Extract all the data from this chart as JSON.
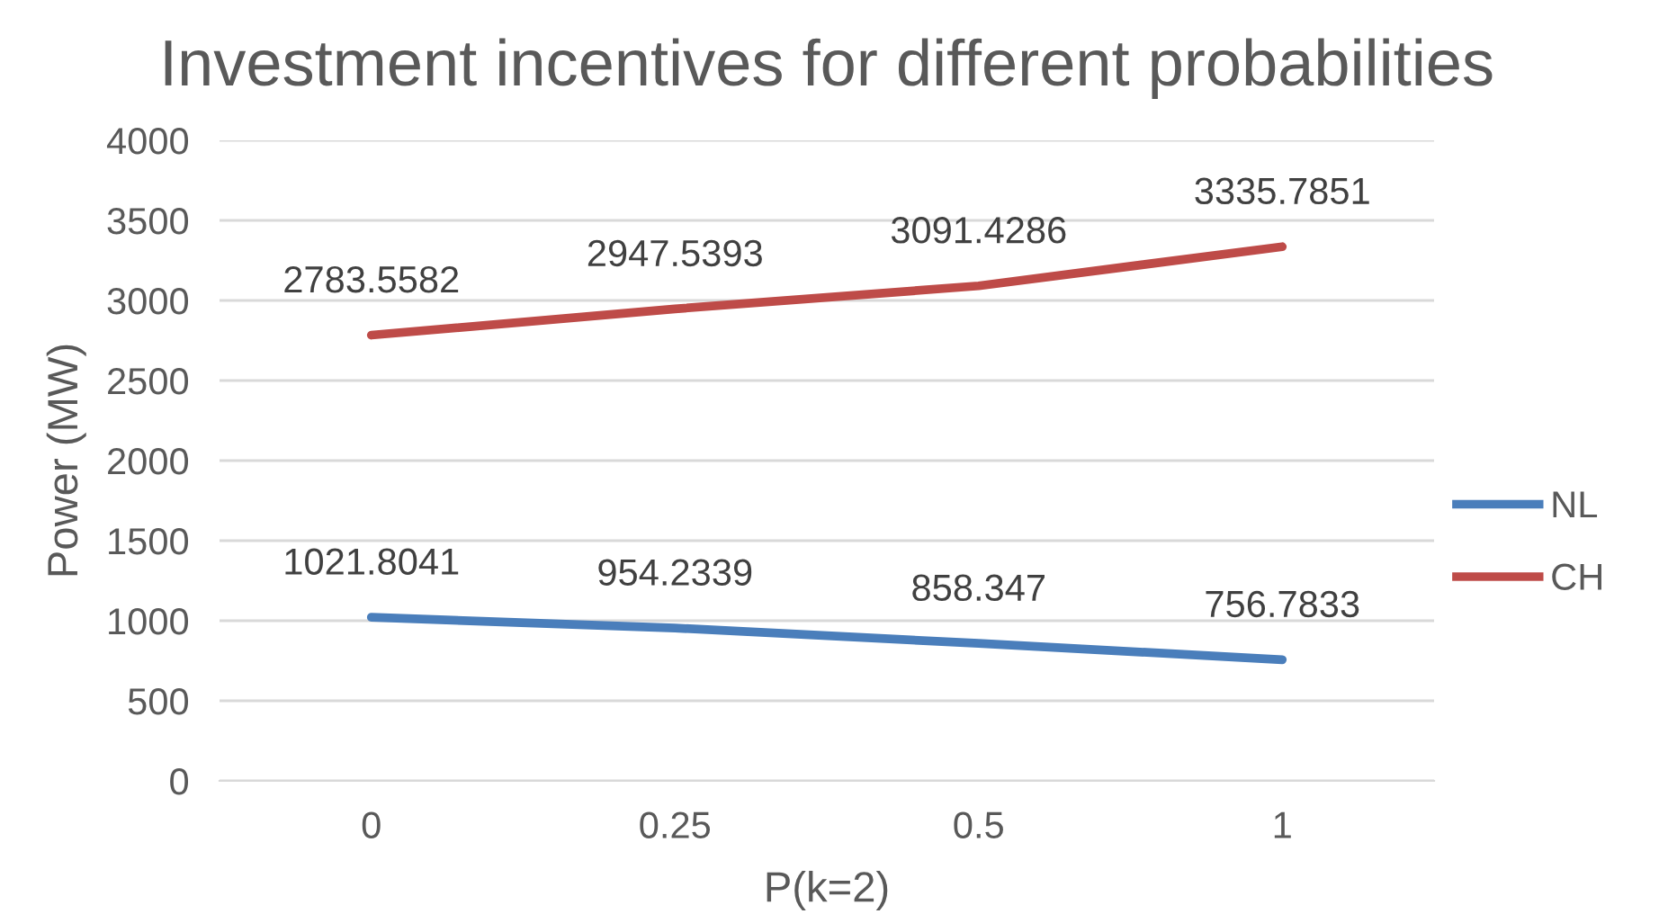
{
  "chart_data": {
    "type": "line",
    "title": "Investment incentives for different probabilities",
    "xlabel": "P(k=2)",
    "ylabel": "Power (MW)",
    "categories": [
      "0",
      "0.25",
      "0.5",
      "1"
    ],
    "series": [
      {
        "name": "NL",
        "color": "#4a7ebb",
        "values": [
          1021.8041,
          954.2339,
          858.347,
          756.7833
        ]
      },
      {
        "name": "CH",
        "color": "#be4b48",
        "values": [
          2783.5582,
          2947.5393,
          3091.4286,
          3335.7851
        ]
      }
    ],
    "ylim": [
      0,
      4000
    ],
    "yticks": [
      0,
      500,
      1000,
      1500,
      2000,
      2500,
      3000,
      3500,
      4000
    ],
    "grid": "y",
    "legend": "right",
    "data_labels": true,
    "marker": "none",
    "line_style": "solid"
  }
}
